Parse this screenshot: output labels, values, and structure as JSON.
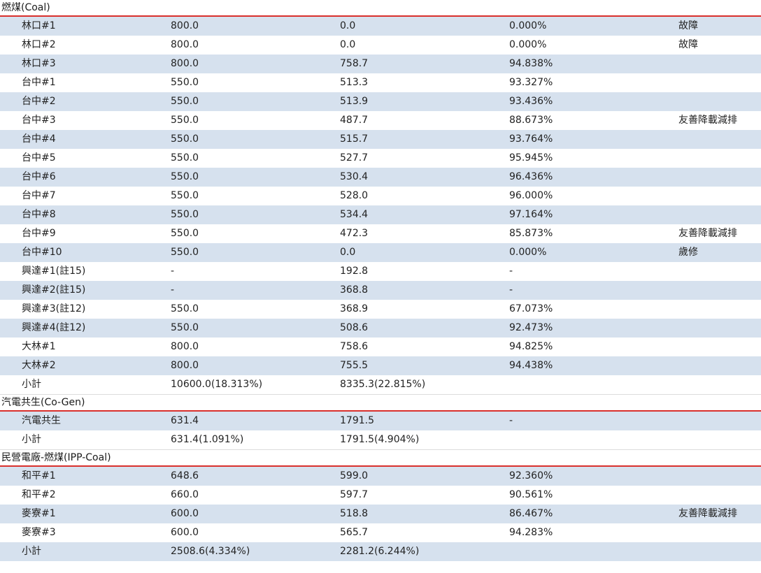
{
  "groups": [
    {
      "title": "燃煤(Coal)",
      "rows": [
        {
          "name": "林口#1",
          "capacity": "800.0",
          "net": "0.0",
          "ratio": "0.000%",
          "note": "故障"
        },
        {
          "name": "林口#2",
          "capacity": "800.0",
          "net": "0.0",
          "ratio": "0.000%",
          "note": "故障"
        },
        {
          "name": "林口#3",
          "capacity": "800.0",
          "net": "758.7",
          "ratio": "94.838%",
          "note": ""
        },
        {
          "name": "台中#1",
          "capacity": "550.0",
          "net": "513.3",
          "ratio": "93.327%",
          "note": ""
        },
        {
          "name": "台中#2",
          "capacity": "550.0",
          "net": "513.9",
          "ratio": "93.436%",
          "note": ""
        },
        {
          "name": "台中#3",
          "capacity": "550.0",
          "net": "487.7",
          "ratio": "88.673%",
          "note": "友善降載減排"
        },
        {
          "name": "台中#4",
          "capacity": "550.0",
          "net": "515.7",
          "ratio": "93.764%",
          "note": ""
        },
        {
          "name": "台中#5",
          "capacity": "550.0",
          "net": "527.7",
          "ratio": "95.945%",
          "note": ""
        },
        {
          "name": "台中#6",
          "capacity": "550.0",
          "net": "530.4",
          "ratio": "96.436%",
          "note": ""
        },
        {
          "name": "台中#7",
          "capacity": "550.0",
          "net": "528.0",
          "ratio": "96.000%",
          "note": ""
        },
        {
          "name": "台中#8",
          "capacity": "550.0",
          "net": "534.4",
          "ratio": "97.164%",
          "note": ""
        },
        {
          "name": "台中#9",
          "capacity": "550.0",
          "net": "472.3",
          "ratio": "85.873%",
          "note": "友善降載減排"
        },
        {
          "name": "台中#10",
          "capacity": "550.0",
          "net": "0.0",
          "ratio": "0.000%",
          "note": "歲修"
        },
        {
          "name": "興達#1(註15)",
          "capacity": "-",
          "net": "192.8",
          "ratio": "-",
          "note": ""
        },
        {
          "name": "興達#2(註15)",
          "capacity": "-",
          "net": "368.8",
          "ratio": "-",
          "note": ""
        },
        {
          "name": "興達#3(註12)",
          "capacity": "550.0",
          "net": "368.9",
          "ratio": "67.073%",
          "note": ""
        },
        {
          "name": "興達#4(註12)",
          "capacity": "550.0",
          "net": "508.6",
          "ratio": "92.473%",
          "note": ""
        },
        {
          "name": "大林#1",
          "capacity": "800.0",
          "net": "758.6",
          "ratio": "94.825%",
          "note": ""
        },
        {
          "name": "大林#2",
          "capacity": "800.0",
          "net": "755.5",
          "ratio": "94.438%",
          "note": ""
        },
        {
          "name": "小計",
          "capacity": "10600.0(18.313%)",
          "net": "8335.3(22.815%)",
          "ratio": "",
          "note": ""
        }
      ]
    },
    {
      "title": "汽電共生(Co-Gen)",
      "rows": [
        {
          "name": "汽電共生",
          "capacity": "631.4",
          "net": "1791.5",
          "ratio": "-",
          "note": ""
        },
        {
          "name": "小計",
          "capacity": "631.4(1.091%)",
          "net": "1791.5(4.904%)",
          "ratio": "",
          "note": ""
        }
      ]
    },
    {
      "title": "民營電廠-燃煤(IPP-Coal)",
      "rows": [
        {
          "name": "和平#1",
          "capacity": "648.6",
          "net": "599.0",
          "ratio": "92.360%",
          "note": ""
        },
        {
          "name": "和平#2",
          "capacity": "660.0",
          "net": "597.7",
          "ratio": "90.561%",
          "note": ""
        },
        {
          "name": "麥寮#1",
          "capacity": "600.0",
          "net": "518.8",
          "ratio": "86.467%",
          "note": "友善降載減排"
        },
        {
          "name": "麥寮#3",
          "capacity": "600.0",
          "net": "565.7",
          "ratio": "94.283%",
          "note": ""
        },
        {
          "name": "小計",
          "capacity": "2508.6(4.334%)",
          "net": "2281.2(6.244%)",
          "ratio": "",
          "note": ""
        }
      ]
    }
  ]
}
